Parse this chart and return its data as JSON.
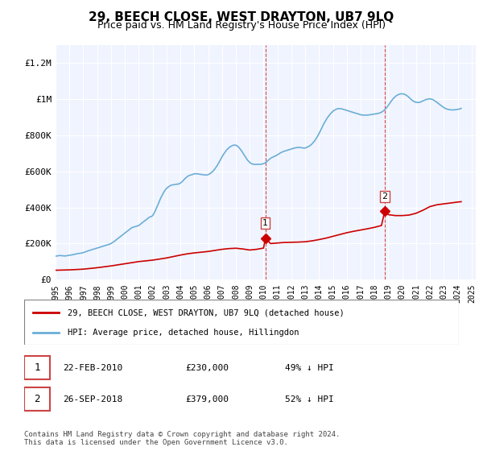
{
  "title": "29, BEECH CLOSE, WEST DRAYTON, UB7 9LQ",
  "subtitle": "Price paid vs. HM Land Registry's House Price Index (HPI)",
  "hpi_color": "#6baed6",
  "price_color": "#cc0000",
  "background_color": "#ffffff",
  "plot_bg_color": "#f0f4ff",
  "ylim": [
    0,
    1300000
  ],
  "yticks": [
    0,
    200000,
    400000,
    600000,
    800000,
    1000000,
    1200000
  ],
  "ytick_labels": [
    "£0",
    "£200K",
    "£400K",
    "£600K",
    "£800K",
    "£1M",
    "£1.2M"
  ],
  "legend_house": "29, BEECH CLOSE, WEST DRAYTON, UB7 9LQ (detached house)",
  "legend_hpi": "HPI: Average price, detached house, Hillingdon",
  "transaction1_label": "1",
  "transaction1_date": "22-FEB-2010",
  "transaction1_price": "£230,000",
  "transaction1_pct": "49% ↓ HPI",
  "transaction1_x": 2010.13,
  "transaction1_y": 230000,
  "transaction2_label": "2",
  "transaction2_date": "26-SEP-2018",
  "transaction2_price": "£379,000",
  "transaction2_pct": "52% ↓ HPI",
  "transaction2_x": 2018.74,
  "transaction2_y": 379000,
  "footnote": "Contains HM Land Registry data © Crown copyright and database right 2024.\nThis data is licensed under the Open Government Licence v3.0.",
  "hpi_years": [
    1995.0,
    1995.08,
    1995.17,
    1995.25,
    1995.33,
    1995.42,
    1995.5,
    1995.58,
    1995.67,
    1995.75,
    1995.83,
    1995.92,
    1996.0,
    1996.08,
    1996.17,
    1996.25,
    1996.33,
    1996.42,
    1996.5,
    1996.58,
    1996.67,
    1996.75,
    1996.83,
    1996.92,
    1997.0,
    1997.08,
    1997.17,
    1997.25,
    1997.33,
    1997.42,
    1997.5,
    1997.58,
    1997.67,
    1997.75,
    1997.83,
    1997.92,
    1998.0,
    1998.08,
    1998.17,
    1998.25,
    1998.33,
    1998.42,
    1998.5,
    1998.58,
    1998.67,
    1998.75,
    1998.83,
    1998.92,
    1999.0,
    1999.08,
    1999.17,
    1999.25,
    1999.33,
    1999.42,
    1999.5,
    1999.58,
    1999.67,
    1999.75,
    1999.83,
    1999.92,
    2000.0,
    2000.08,
    2000.17,
    2000.25,
    2000.33,
    2000.42,
    2000.5,
    2000.58,
    2000.67,
    2000.75,
    2000.83,
    2000.92,
    2001.0,
    2001.08,
    2001.17,
    2001.25,
    2001.33,
    2001.42,
    2001.5,
    2001.58,
    2001.67,
    2001.75,
    2001.83,
    2001.92,
    2002.0,
    2002.08,
    2002.17,
    2002.25,
    2002.33,
    2002.42,
    2002.5,
    2002.58,
    2002.67,
    2002.75,
    2002.83,
    2002.92,
    2003.0,
    2003.08,
    2003.17,
    2003.25,
    2003.33,
    2003.42,
    2003.5,
    2003.58,
    2003.67,
    2003.75,
    2003.83,
    2003.92,
    2004.0,
    2004.08,
    2004.17,
    2004.25,
    2004.33,
    2004.42,
    2004.5,
    2004.58,
    2004.67,
    2004.75,
    2004.83,
    2004.92,
    2005.0,
    2005.08,
    2005.17,
    2005.25,
    2005.33,
    2005.42,
    2005.5,
    2005.58,
    2005.67,
    2005.75,
    2005.83,
    2005.92,
    2006.0,
    2006.08,
    2006.17,
    2006.25,
    2006.33,
    2006.42,
    2006.5,
    2006.58,
    2006.67,
    2006.75,
    2006.83,
    2006.92,
    2007.0,
    2007.08,
    2007.17,
    2007.25,
    2007.33,
    2007.42,
    2007.5,
    2007.58,
    2007.67,
    2007.75,
    2007.83,
    2007.92,
    2008.0,
    2008.08,
    2008.17,
    2008.25,
    2008.33,
    2008.42,
    2008.5,
    2008.58,
    2008.67,
    2008.75,
    2008.83,
    2008.92,
    2009.0,
    2009.08,
    2009.17,
    2009.25,
    2009.33,
    2009.42,
    2009.5,
    2009.58,
    2009.67,
    2009.75,
    2009.83,
    2009.92,
    2010.0,
    2010.08,
    2010.17,
    2010.25,
    2010.33,
    2010.42,
    2010.5,
    2010.58,
    2010.67,
    2010.75,
    2010.83,
    2010.92,
    2011.0,
    2011.08,
    2011.17,
    2011.25,
    2011.33,
    2011.42,
    2011.5,
    2011.58,
    2011.67,
    2011.75,
    2011.83,
    2011.92,
    2012.0,
    2012.08,
    2012.17,
    2012.25,
    2012.33,
    2012.42,
    2012.5,
    2012.58,
    2012.67,
    2012.75,
    2012.83,
    2012.92,
    2013.0,
    2013.08,
    2013.17,
    2013.25,
    2013.33,
    2013.42,
    2013.5,
    2013.58,
    2013.67,
    2013.75,
    2013.83,
    2013.92,
    2014.0,
    2014.08,
    2014.17,
    2014.25,
    2014.33,
    2014.42,
    2014.5,
    2014.58,
    2014.67,
    2014.75,
    2014.83,
    2014.92,
    2015.0,
    2015.08,
    2015.17,
    2015.25,
    2015.33,
    2015.42,
    2015.5,
    2015.58,
    2015.67,
    2015.75,
    2015.83,
    2015.92,
    2016.0,
    2016.08,
    2016.17,
    2016.25,
    2016.33,
    2016.42,
    2016.5,
    2016.58,
    2016.67,
    2016.75,
    2016.83,
    2016.92,
    2017.0,
    2017.08,
    2017.17,
    2017.25,
    2017.33,
    2017.42,
    2017.5,
    2017.58,
    2017.67,
    2017.75,
    2017.83,
    2017.92,
    2018.0,
    2018.08,
    2018.17,
    2018.25,
    2018.33,
    2018.42,
    2018.5,
    2018.58,
    2018.67,
    2018.75,
    2018.83,
    2018.92,
    2019.0,
    2019.08,
    2019.17,
    2019.25,
    2019.33,
    2019.42,
    2019.5,
    2019.58,
    2019.67,
    2019.75,
    2019.83,
    2019.92,
    2020.0,
    2020.08,
    2020.17,
    2020.25,
    2020.33,
    2020.42,
    2020.5,
    2020.58,
    2020.67,
    2020.75,
    2020.83,
    2020.92,
    2021.0,
    2021.08,
    2021.17,
    2021.25,
    2021.33,
    2021.42,
    2021.5,
    2021.58,
    2021.67,
    2021.75,
    2021.83,
    2021.92,
    2022.0,
    2022.08,
    2022.17,
    2022.25,
    2022.33,
    2022.42,
    2022.5,
    2022.58,
    2022.67,
    2022.75,
    2022.83,
    2022.92,
    2023.0,
    2023.08,
    2023.17,
    2023.25,
    2023.33,
    2023.42,
    2023.5,
    2023.58,
    2023.67,
    2023.75,
    2023.83,
    2023.92,
    2024.0,
    2024.08,
    2024.17,
    2024.25
  ],
  "hpi_values": [
    130000,
    131000,
    132000,
    133000,
    134000,
    133000,
    132000,
    132000,
    131000,
    132000,
    133000,
    134000,
    135000,
    136000,
    137000,
    138000,
    140000,
    141000,
    143000,
    144000,
    145000,
    146000,
    147000,
    148000,
    150000,
    152000,
    154000,
    157000,
    159000,
    161000,
    163000,
    165000,
    167000,
    169000,
    171000,
    173000,
    175000,
    177000,
    179000,
    181000,
    183000,
    185000,
    187000,
    189000,
    191000,
    193000,
    195000,
    197000,
    200000,
    204000,
    208000,
    213000,
    218000,
    223000,
    228000,
    233000,
    238000,
    243000,
    248000,
    253000,
    258000,
    263000,
    268000,
    273000,
    278000,
    283000,
    288000,
    290000,
    292000,
    294000,
    296000,
    298000,
    300000,
    305000,
    310000,
    315000,
    320000,
    325000,
    330000,
    335000,
    340000,
    345000,
    348000,
    350000,
    355000,
    365000,
    378000,
    392000,
    407000,
    422000,
    437000,
    452000,
    465000,
    477000,
    488000,
    498000,
    505000,
    511000,
    516000,
    520000,
    523000,
    525000,
    526000,
    527000,
    528000,
    529000,
    530000,
    531000,
    535000,
    540000,
    546000,
    553000,
    560000,
    566000,
    571000,
    575000,
    578000,
    580000,
    582000,
    584000,
    586000,
    587000,
    587000,
    586000,
    585000,
    584000,
    583000,
    582000,
    581000,
    580000,
    580000,
    580000,
    582000,
    585000,
    589000,
    594000,
    600000,
    607000,
    615000,
    624000,
    634000,
    645000,
    656000,
    668000,
    680000,
    691000,
    701000,
    710000,
    718000,
    725000,
    731000,
    736000,
    740000,
    743000,
    745000,
    746000,
    745000,
    742000,
    737000,
    730000,
    722000,
    713000,
    703000,
    693000,
    683000,
    673000,
    664000,
    656000,
    650000,
    645000,
    642000,
    640000,
    639000,
    639000,
    639000,
    639000,
    639000,
    639000,
    640000,
    641000,
    643000,
    646000,
    650000,
    655000,
    661000,
    667000,
    672000,
    676000,
    679000,
    682000,
    685000,
    688000,
    692000,
    696000,
    700000,
    704000,
    707000,
    710000,
    712000,
    714000,
    716000,
    718000,
    720000,
    722000,
    724000,
    726000,
    728000,
    730000,
    731000,
    732000,
    733000,
    733000,
    732000,
    731000,
    730000,
    729000,
    730000,
    732000,
    735000,
    738000,
    742000,
    747000,
    753000,
    760000,
    768000,
    777000,
    787000,
    798000,
    810000,
    823000,
    836000,
    849000,
    862000,
    874000,
    885000,
    895000,
    904000,
    912000,
    920000,
    927000,
    933000,
    938000,
    942000,
    945000,
    947000,
    948000,
    948000,
    947000,
    946000,
    944000,
    942000,
    940000,
    938000,
    936000,
    934000,
    932000,
    930000,
    928000,
    926000,
    924000,
    922000,
    920000,
    918000,
    916000,
    914000,
    913000,
    912000,
    912000,
    912000,
    912000,
    912000,
    913000,
    914000,
    915000,
    916000,
    917000,
    918000,
    919000,
    920000,
    921000,
    923000,
    925000,
    928000,
    932000,
    937000,
    943000,
    950000,
    958000,
    967000,
    976000,
    985000,
    994000,
    1002000,
    1009000,
    1015000,
    1020000,
    1024000,
    1027000,
    1029000,
    1030000,
    1030000,
    1029000,
    1027000,
    1024000,
    1020000,
    1015000,
    1009000,
    1003000,
    997000,
    992000,
    988000,
    985000,
    983000,
    982000,
    982000,
    983000,
    985000,
    988000,
    991000,
    994000,
    997000,
    999000,
    1001000,
    1002000,
    1002000,
    1001000,
    999000,
    996000,
    992000,
    988000,
    983000,
    978000,
    973000,
    968000,
    963000,
    958000,
    954000,
    950000,
    947000,
    945000,
    943000,
    942000,
    941000,
    941000,
    941000,
    941000,
    942000,
    943000,
    944000,
    945000,
    947000,
    949000
  ],
  "price_years": [
    1995.0,
    1995.5,
    1996.0,
    1996.5,
    1997.0,
    1997.5,
    1998.0,
    1998.5,
    1999.0,
    1999.5,
    2000.0,
    2000.5,
    2001.0,
    2001.5,
    2002.0,
    2002.5,
    2003.0,
    2003.5,
    2004.0,
    2004.5,
    2005.0,
    2005.5,
    2006.0,
    2006.5,
    2007.0,
    2007.5,
    2008.0,
    2008.5,
    2009.0,
    2009.5,
    2010.0,
    2010.13,
    2010.5,
    2011.0,
    2011.5,
    2012.0,
    2012.5,
    2013.0,
    2013.5,
    2014.0,
    2014.5,
    2015.0,
    2015.5,
    2016.0,
    2016.5,
    2017.0,
    2017.5,
    2018.0,
    2018.5,
    2018.74,
    2019.0,
    2019.5,
    2020.0,
    2020.5,
    2021.0,
    2021.5,
    2022.0,
    2022.5,
    2023.0,
    2023.5,
    2024.0,
    2024.25
  ],
  "price_values": [
    52000,
    53000,
    54000,
    56000,
    58000,
    62000,
    66000,
    71000,
    76000,
    82000,
    88000,
    94000,
    100000,
    104000,
    108000,
    114000,
    120000,
    128000,
    136000,
    143000,
    148000,
    152000,
    156000,
    162000,
    168000,
    172000,
    174000,
    170000,
    164000,
    168000,
    175000,
    230000,
    200000,
    203000,
    206000,
    207000,
    208000,
    210000,
    215000,
    222000,
    230000,
    240000,
    250000,
    260000,
    268000,
    275000,
    282000,
    290000,
    300000,
    379000,
    360000,
    355000,
    355000,
    358000,
    368000,
    385000,
    405000,
    415000,
    420000,
    425000,
    430000,
    432000
  ],
  "xtick_years": [
    1995,
    1996,
    1997,
    1998,
    1999,
    2000,
    2001,
    2002,
    2003,
    2004,
    2005,
    2006,
    2007,
    2008,
    2009,
    2010,
    2011,
    2012,
    2013,
    2014,
    2015,
    2016,
    2017,
    2018,
    2019,
    2020,
    2021,
    2022,
    2023,
    2024,
    2025
  ]
}
